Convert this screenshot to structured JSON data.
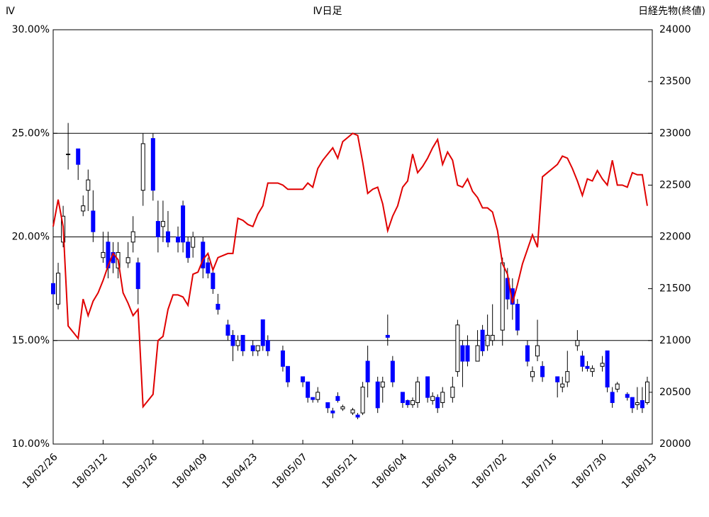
{
  "chart_data": {
    "type": "combo",
    "title": "Ⅳ日足",
    "y_label": "Ⅳ",
    "y2_label": "日経先物(終値)",
    "categories": [
      "18/02/26",
      null,
      null,
      null,
      null,
      null,
      null,
      null,
      null,
      null,
      "18/03/12",
      null,
      null,
      null,
      null,
      null,
      null,
      null,
      null,
      null,
      "18/03/26",
      null,
      null,
      null,
      null,
      null,
      null,
      null,
      null,
      null,
      "18/04/09",
      null,
      null,
      null,
      null,
      null,
      null,
      null,
      null,
      null,
      "18/04/23",
      null,
      null,
      null,
      null,
      null,
      null,
      null,
      null,
      null,
      "18/05/07",
      null,
      null,
      null,
      null,
      null,
      null,
      null,
      null,
      null,
      "18/05/21",
      null,
      null,
      null,
      null,
      null,
      null,
      null,
      null,
      null,
      "18/06/04",
      null,
      null,
      null,
      null,
      null,
      null,
      null,
      null,
      null,
      "18/06/18",
      null,
      null,
      null,
      null,
      null,
      null,
      null,
      null,
      null,
      "18/07/02",
      null,
      null,
      null,
      null,
      null,
      null,
      null,
      null,
      null,
      "18/07/16",
      null,
      null,
      null,
      null,
      null,
      null,
      null,
      null,
      null,
      "18/07/30",
      null,
      null,
      null,
      null,
      null,
      null,
      null,
      null,
      null,
      "18/08/13"
    ],
    "ylim": [
      10,
      30
    ],
    "yticks": [
      {
        "value": 10,
        "label": "10.00%"
      },
      {
        "value": 15,
        "label": "15.00%"
      },
      {
        "value": 20,
        "label": "20.00%"
      },
      {
        "value": 25,
        "label": "25.00%"
      },
      {
        "value": 30,
        "label": "30.00%"
      }
    ],
    "y2lim": [
      20000,
      24000
    ],
    "y2ticks": [
      20000,
      20500,
      21000,
      21500,
      22000,
      22500,
      23000,
      23500,
      24000
    ],
    "grid": true,
    "series": [
      {
        "type": "line",
        "color": "#e00000",
        "values": [
          20.5,
          21.8,
          20.5,
          15.7,
          15.4,
          15.1,
          17,
          16.2,
          16.9,
          17.3,
          17.9,
          18.6,
          19.2,
          18.9,
          17.3,
          16.8,
          16.2,
          16.5,
          11.8,
          12.1,
          12.4,
          15,
          15.2,
          16.5,
          17.2,
          17.2,
          17.1,
          16.7,
          18.2,
          18.3,
          18.9,
          19.2,
          18.4,
          19,
          19.1,
          19.2,
          19.2,
          20.9,
          20.8,
          20.6,
          20.5,
          21.1,
          21.5,
          22.6,
          22.6,
          22.6,
          22.5,
          22.3,
          22.3,
          22.3,
          22.3,
          22.6,
          22.4,
          23.3,
          23.7,
          24,
          24.3,
          23.8,
          24.6,
          24.8,
          25,
          24.9,
          23.6,
          22.1,
          22.3,
          22.4,
          21.6,
          20.3,
          21,
          21.5,
          22.4,
          22.7,
          24,
          23.1,
          23.4,
          23.8,
          24.3,
          24.7,
          23.5,
          24.1,
          23.7,
          22.5,
          22.4,
          22.8,
          22.2,
          21.9,
          21.4,
          21.4,
          21.2,
          20.3,
          18.7,
          18.2,
          16.8,
          17.7,
          18.7,
          19.4,
          20.1,
          19.5,
          22.9,
          23.1,
          23.3,
          23.5,
          23.9,
          23.8,
          23.3,
          22.7,
          22,
          22.8,
          22.7,
          23.2,
          22.8,
          22.5,
          23.7,
          22.5,
          22.5,
          22.4,
          23.1,
          23,
          23,
          21.5,
          null
        ]
      },
      {
        "type": "candlestick",
        "axis": "y2",
        "up_color": "#ffffff",
        "down_color": "#0000ff",
        "open": [
          21550,
          21350,
          21950,
          22800,
          null,
          22850,
          22250,
          22450,
          22250,
          null,
          21800,
          21950,
          21850,
          21700,
          null,
          21750,
          21950,
          21750,
          22450,
          null,
          22950,
          22150,
          22100,
          22050,
          null,
          22000,
          22300,
          21950,
          21900,
          null,
          21950,
          21750,
          21650,
          21350,
          null,
          21150,
          21050,
          20950,
          21050,
          null,
          20950,
          20900,
          21200,
          21000,
          null,
          null,
          20900,
          20750,
          null,
          null,
          20650,
          20600,
          20450,
          20430,
          null,
          20400,
          20320,
          20460,
          20340,
          null,
          20300,
          20280,
          20300,
          20800,
          null,
          20600,
          20550,
          21050,
          20800,
          null,
          20500,
          20420,
          20380,
          20400,
          null,
          20650,
          20420,
          20450,
          20400,
          null,
          20450,
          20700,
          20950,
          20950,
          null,
          20800,
          21100,
          20950,
          21000,
          null,
          21100,
          21600,
          21500,
          21350,
          null,
          20950,
          20650,
          20850,
          20750,
          null,
          null,
          20650,
          20550,
          20600,
          null,
          20950,
          20850,
          20750,
          20700,
          null,
          20750,
          20900,
          20500,
          20530,
          null,
          20480,
          20450,
          20380,
          20420,
          20400,
          null
        ],
        "high": [
          21650,
          21750,
          22300,
          23100,
          null,
          22850,
          22400,
          22650,
          22450,
          null,
          22050,
          22050,
          21950,
          21950,
          null,
          21950,
          22200,
          21800,
          23000,
          null,
          23000,
          22350,
          22350,
          22250,
          null,
          22100,
          22350,
          22000,
          22050,
          null,
          22000,
          21800,
          21700,
          21450,
          null,
          21200,
          21100,
          21050,
          21050,
          null,
          21000,
          20950,
          21200,
          21050,
          null,
          null,
          20950,
          20750,
          null,
          null,
          20650,
          20600,
          20450,
          20550,
          null,
          20400,
          20350,
          20500,
          20380,
          null,
          20350,
          20300,
          20600,
          20950,
          null,
          20650,
          20650,
          21250,
          20850,
          null,
          20500,
          20430,
          20450,
          20650,
          null,
          20650,
          20500,
          20480,
          20550,
          null,
          20650,
          21200,
          21000,
          21050,
          null,
          21100,
          21150,
          21250,
          21350,
          null,
          21800,
          21700,
          21600,
          21400,
          null,
          21000,
          20750,
          21200,
          20800,
          null,
          null,
          20650,
          20650,
          20900,
          null,
          21100,
          20900,
          20800,
          20760,
          null,
          20850,
          20900,
          20550,
          20600,
          null,
          20500,
          20450,
          20550,
          20550,
          20650,
          null
        ],
        "low": [
          21400,
          21300,
          21900,
          22650,
          null,
          22550,
          22200,
          22250,
          21950,
          null,
          21750,
          21600,
          21650,
          21600,
          null,
          21700,
          21850,
          21350,
          22300,
          null,
          22350,
          21850,
          21950,
          21900,
          null,
          21850,
          21850,
          21750,
          21800,
          null,
          21600,
          21600,
          21450,
          21250,
          null,
          21000,
          20800,
          20900,
          20850,
          null,
          20850,
          20850,
          20900,
          20850,
          null,
          null,
          20700,
          20550,
          null,
          null,
          20550,
          20400,
          20400,
          20400,
          null,
          20300,
          20250,
          20400,
          20320,
          null,
          20280,
          20240,
          20280,
          20450,
          null,
          20300,
          20400,
          20950,
          20550,
          null,
          20350,
          20350,
          20350,
          20350,
          null,
          20400,
          20380,
          20300,
          20350,
          null,
          20400,
          20650,
          20550,
          20750,
          null,
          20800,
          20850,
          20900,
          20950,
          null,
          20950,
          21300,
          21200,
          21050,
          null,
          20750,
          20600,
          20800,
          20600,
          null,
          null,
          20450,
          20500,
          20550,
          null,
          20900,
          20700,
          20700,
          20650,
          null,
          20700,
          20500,
          20350,
          20500,
          null,
          20420,
          20300,
          20330,
          20300,
          20380,
          null
        ],
        "close": [
          21450,
          21650,
          22200,
          22800,
          null,
          22700,
          22300,
          22550,
          22050,
          null,
          21850,
          21700,
          21750,
          21850,
          null,
          21800,
          22050,
          21500,
          22900,
          null,
          22450,
          22000,
          22150,
          21950,
          null,
          21950,
          21950,
          21800,
          22000,
          null,
          21700,
          21650,
          21500,
          21300,
          null,
          21050,
          20950,
          21000,
          20900,
          null,
          20900,
          20950,
          20950,
          20900,
          null,
          null,
          20750,
          20600,
          null,
          null,
          20600,
          20450,
          20430,
          20500,
          null,
          20350,
          20300,
          20420,
          20360,
          null,
          20330,
          20260,
          20550,
          20600,
          null,
          20350,
          20600,
          21030,
          20600,
          null,
          20400,
          20380,
          20420,
          20600,
          null,
          20450,
          20460,
          20350,
          20500,
          null,
          20550,
          21150,
          20800,
          20800,
          null,
          20950,
          20900,
          21050,
          21050,
          null,
          21750,
          21400,
          21350,
          21100,
          null,
          20800,
          20700,
          20950,
          20650,
          null,
          null,
          20600,
          20580,
          20700,
          null,
          21000,
          20750,
          20730,
          20730,
          null,
          20780,
          20550,
          20400,
          20580,
          null,
          20450,
          20350,
          20400,
          20350,
          20600,
          null
        ]
      }
    ]
  }
}
